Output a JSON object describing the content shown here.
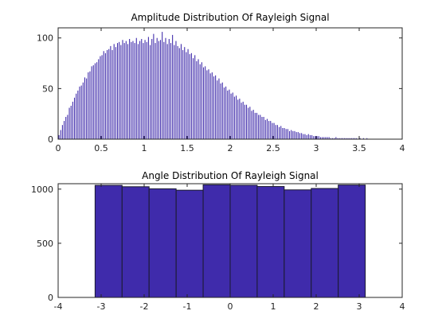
{
  "colors": {
    "bar": "#3f2bab",
    "edge": "#1a1a2e",
    "axis": "#262626",
    "background": "#ffffff"
  },
  "chart_data": [
    {
      "type": "bar",
      "title": "Amplitude Distribution Of Rayleigh Signal",
      "xlabel": "",
      "ylabel": "",
      "xlim": [
        0,
        4
      ],
      "ylim": [
        0,
        110
      ],
      "xticks": [
        "0",
        "0.5",
        "1",
        "1.5",
        "2",
        "2.5",
        "3",
        "3.5",
        "4"
      ],
      "yticks": [
        "0",
        "50",
        "100"
      ],
      "bin_width": 0.01,
      "x": [
        0.01,
        0.03,
        0.05,
        0.07,
        0.09,
        0.11,
        0.13,
        0.15,
        0.17,
        0.19,
        0.21,
        0.23,
        0.25,
        0.27,
        0.29,
        0.31,
        0.33,
        0.35,
        0.37,
        0.39,
        0.41,
        0.43,
        0.45,
        0.47,
        0.49,
        0.51,
        0.53,
        0.55,
        0.57,
        0.59,
        0.61,
        0.63,
        0.65,
        0.67,
        0.69,
        0.71,
        0.73,
        0.75,
        0.77,
        0.79,
        0.81,
        0.83,
        0.85,
        0.87,
        0.89,
        0.91,
        0.93,
        0.95,
        0.97,
        0.99,
        1.01,
        1.03,
        1.05,
        1.07,
        1.09,
        1.11,
        1.13,
        1.15,
        1.17,
        1.19,
        1.21,
        1.23,
        1.25,
        1.27,
        1.29,
        1.31,
        1.33,
        1.35,
        1.37,
        1.39,
        1.41,
        1.43,
        1.45,
        1.47,
        1.49,
        1.51,
        1.53,
        1.55,
        1.57,
        1.59,
        1.61,
        1.63,
        1.65,
        1.67,
        1.69,
        1.71,
        1.73,
        1.75,
        1.77,
        1.79,
        1.81,
        1.83,
        1.85,
        1.87,
        1.89,
        1.91,
        1.93,
        1.95,
        1.97,
        1.99,
        2.01,
        2.03,
        2.05,
        2.07,
        2.09,
        2.11,
        2.13,
        2.15,
        2.17,
        2.19,
        2.21,
        2.23,
        2.25,
        2.27,
        2.29,
        2.31,
        2.33,
        2.35,
        2.37,
        2.39,
        2.41,
        2.43,
        2.45,
        2.47,
        2.49,
        2.51,
        2.53,
        2.55,
        2.57,
        2.59,
        2.61,
        2.63,
        2.65,
        2.67,
        2.69,
        2.71,
        2.73,
        2.75,
        2.77,
        2.79,
        2.81,
        2.83,
        2.85,
        2.87,
        2.89,
        2.91,
        2.93,
        2.95,
        2.97,
        2.99,
        3.01,
        3.03,
        3.05,
        3.07,
        3.09,
        3.11,
        3.13,
        3.15,
        3.17,
        3.19,
        3.21,
        3.23,
        3.25,
        3.27,
        3.29,
        3.31,
        3.33,
        3.35,
        3.37,
        3.39,
        3.41,
        3.43,
        3.45,
        3.47,
        3.49,
        3.51,
        3.53,
        3.55,
        3.57,
        3.59
      ],
      "values": [
        4,
        9,
        14,
        18,
        22,
        24,
        31,
        33,
        37,
        41,
        45,
        48,
        52,
        53,
        56,
        61,
        60,
        66,
        67,
        72,
        73,
        75,
        76,
        79,
        82,
        83,
        87,
        85,
        88,
        89,
        92,
        88,
        94,
        91,
        95,
        96,
        93,
        98,
        95,
        97,
        94,
        99,
        96,
        97,
        95,
        100,
        94,
        97,
        99,
        95,
        98,
        96,
        101,
        93,
        99,
        104,
        95,
        100,
        97,
        98,
        106,
        96,
        100,
        94,
        99,
        95,
        103,
        93,
        97,
        92,
        90,
        94,
        88,
        91,
        86,
        89,
        84,
        85,
        80,
        83,
        77,
        79,
        74,
        76,
        71,
        72,
        68,
        69,
        65,
        66,
        62,
        63,
        58,
        60,
        55,
        56,
        51,
        52,
        48,
        49,
        45,
        46,
        42,
        43,
        39,
        40,
        36,
        37,
        34,
        34,
        31,
        32,
        28,
        29,
        26,
        26,
        24,
        24,
        22,
        22,
        19,
        20,
        18,
        18,
        16,
        16,
        14,
        14,
        12,
        13,
        11,
        11,
        10,
        10,
        8,
        9,
        8,
        8,
        7,
        7,
        6,
        6,
        5,
        5,
        4,
        5,
        4,
        4,
        3,
        3,
        3,
        3,
        2,
        2,
        2,
        2,
        2,
        2,
        1,
        1,
        1,
        2,
        1,
        1,
        1,
        1,
        1,
        1,
        1,
        1,
        1,
        1,
        1,
        1,
        0,
        1,
        0,
        1,
        0,
        1
      ]
    },
    {
      "type": "bar",
      "title": "Angle Distribution Of Rayleigh Signal",
      "xlabel": "",
      "ylabel": "",
      "xlim": [
        -4,
        4
      ],
      "ylim": [
        0,
        1050
      ],
      "xticks": [
        "-4",
        "-3",
        "-2",
        "-1",
        "0",
        "1",
        "2",
        "3",
        "4"
      ],
      "yticks": [
        "0",
        "500",
        "1000"
      ],
      "x": [
        -2.827,
        -2.199,
        -1.571,
        -0.942,
        -0.314,
        0.314,
        0.942,
        1.571,
        2.199,
        2.827
      ],
      "bin_width": 0.6283,
      "values": [
        1035,
        1022,
        1003,
        990,
        1040,
        1036,
        1024,
        993,
        1006,
        1038
      ]
    }
  ]
}
